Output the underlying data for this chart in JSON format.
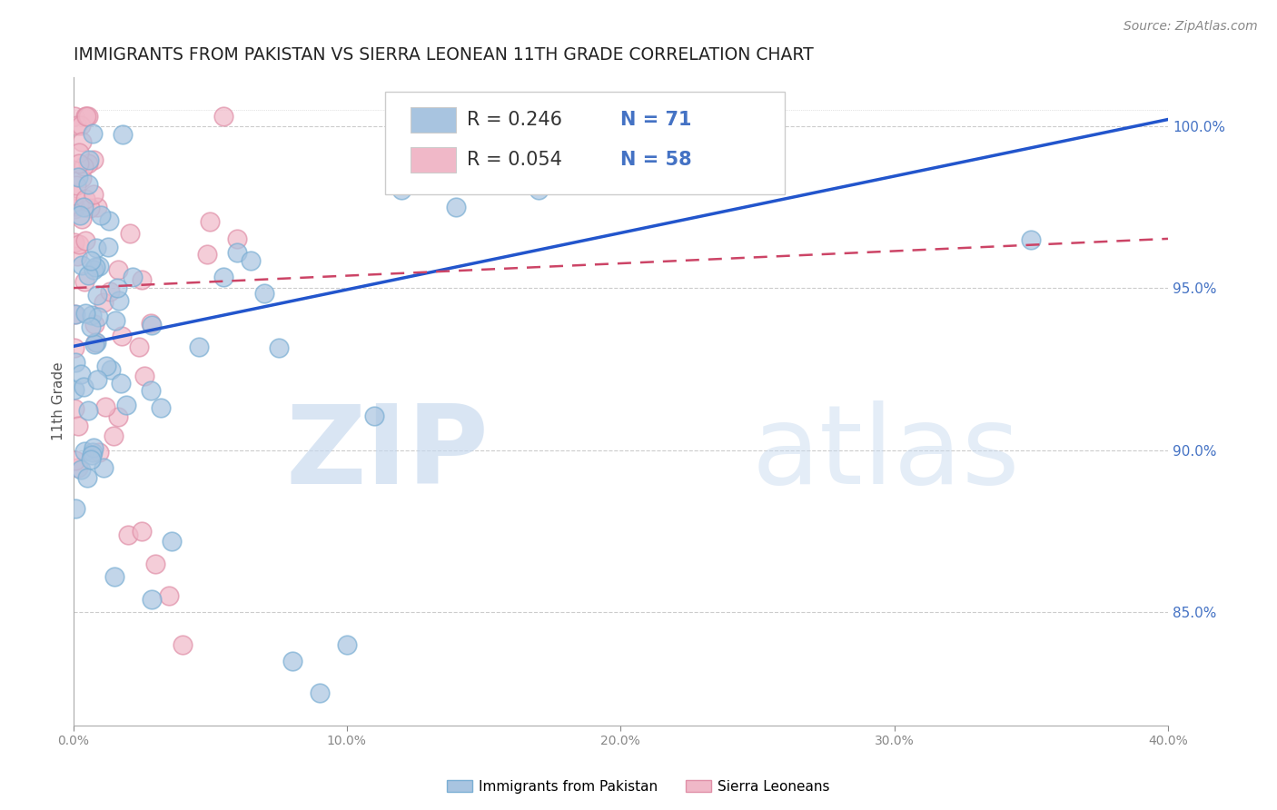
{
  "title": "IMMIGRANTS FROM PAKISTAN VS SIERRA LEONEAN 11TH GRADE CORRELATION CHART",
  "source": "Source: ZipAtlas.com",
  "ylabel": "11th Grade",
  "watermark_zip": "ZIP",
  "watermark_atlas": "atlas",
  "series1_label": "Immigrants from Pakistan",
  "series1_color": "#a8c4e0",
  "series1_edge": "#7bafd4",
  "series1_R": 0.246,
  "series1_N": 71,
  "series2_label": "Sierra Leoneans",
  "series2_color": "#f0b8c8",
  "series2_edge": "#e090a8",
  "series2_R": 0.054,
  "series2_N": 58,
  "legend_patch1_color": "#a8c4e0",
  "legend_patch2_color": "#f0b8c8",
  "legend_R_color": "#333333",
  "legend_N_color": "#4472c4",
  "line1_color": "#2255cc",
  "line2_color": "#cc4466",
  "right_axis_color": "#4472c4",
  "ylim_low": 81.5,
  "ylim_high": 101.5,
  "xlim_low": 0.0,
  "xlim_high": 40.0,
  "yticks": [
    85,
    90,
    95,
    100
  ],
  "background_color": "#ffffff",
  "grid_color": "#cccccc",
  "title_color": "#222222",
  "title_fontsize": 13.5,
  "axis_label_fontsize": 11,
  "source_fontsize": 10,
  "legend_fontsize": 15,
  "watermark_color": "#d0e4f5"
}
